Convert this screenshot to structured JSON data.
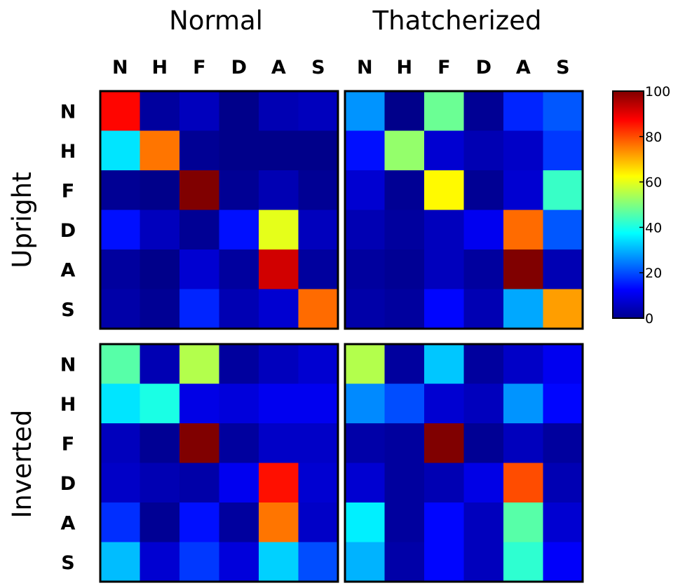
{
  "chart_data": {
    "type": "heatmap",
    "colormap": "jet",
    "column_titles": [
      "Normal",
      "Thatcherized"
    ],
    "row_titles": [
      "Upright",
      "Inverted"
    ],
    "categories": [
      "N",
      "H",
      "F",
      "D",
      "A",
      "S"
    ],
    "colorbar": {
      "range": [
        0,
        100
      ],
      "ticks": [
        "100",
        "80",
        "60",
        "40",
        "20",
        "0"
      ]
    },
    "panels": [
      {
        "row": "Upright",
        "col": "Normal",
        "matrix": [
          [
            87,
            3,
            6,
            1,
            5,
            6
          ],
          [
            35,
            76,
            2,
            1,
            1,
            1
          ],
          [
            2,
            1,
            100,
            2,
            5,
            2
          ],
          [
            14,
            6,
            2,
            14,
            60,
            6
          ],
          [
            3,
            1,
            8,
            3,
            92,
            3
          ],
          [
            4,
            2,
            16,
            5,
            8,
            77
          ]
        ]
      },
      {
        "row": "Upright",
        "col": "Thatcherized",
        "matrix": [
          [
            27,
            1,
            48,
            2,
            16,
            21
          ],
          [
            14,
            52,
            8,
            5,
            7,
            18
          ],
          [
            8,
            2,
            63,
            2,
            8,
            43
          ],
          [
            5,
            3,
            6,
            11,
            77,
            21
          ],
          [
            3,
            2,
            6,
            3,
            100,
            5
          ],
          [
            4,
            3,
            13,
            5,
            29,
            72
          ]
        ]
      },
      {
        "row": "Inverted",
        "col": "Normal",
        "matrix": [
          [
            46,
            5,
            55,
            3,
            6,
            8
          ],
          [
            35,
            40,
            10,
            9,
            11,
            11
          ],
          [
            6,
            2,
            100,
            3,
            7,
            7
          ],
          [
            7,
            5,
            4,
            11,
            86,
            8
          ],
          [
            17,
            2,
            14,
            3,
            76,
            7
          ],
          [
            31,
            8,
            18,
            9,
            33,
            20
          ]
        ]
      },
      {
        "row": "Inverted",
        "col": "Thatcherized",
        "matrix": [
          [
            55,
            3,
            32,
            3,
            7,
            11
          ],
          [
            26,
            20,
            8,
            6,
            27,
            13
          ],
          [
            4,
            3,
            100,
            2,
            6,
            3
          ],
          [
            8,
            3,
            5,
            10,
            80,
            5
          ],
          [
            36,
            3,
            13,
            6,
            46,
            8
          ],
          [
            30,
            4,
            13,
            6,
            42,
            12
          ]
        ]
      }
    ]
  }
}
